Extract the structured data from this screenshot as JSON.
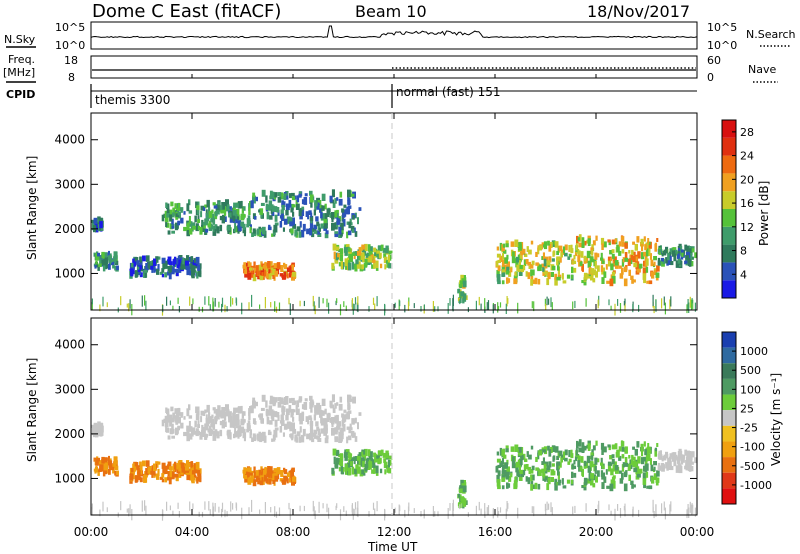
{
  "header": {
    "radar_title": "Dome C East (fitACF)",
    "beam_label": "Beam 10",
    "date_label": "18/Nov/2017"
  },
  "strip": {
    "nsky_label": "N.Sky",
    "nsky_ticks": [
      "10^5",
      "10^0"
    ],
    "nsearch_label": "N.Search",
    "nsearch_ticks": [
      "10^5",
      "10^0"
    ],
    "freq_label_1": "Freq.",
    "freq_label_2": "[MHz]",
    "freq_ticks": [
      "18",
      "8"
    ],
    "nave_label": "Nave",
    "nave_ticks": [
      "60",
      "0"
    ],
    "cpid_label": "CPID",
    "cpid_segments": [
      {
        "name": "themis 3300",
        "start": 0
      },
      {
        "name": "normal (fast) 151",
        "start": 12
      }
    ]
  },
  "axes": {
    "xlabel": "Time UT",
    "x_ticks": [
      "00:00",
      "04:00",
      "08:00",
      "12:00",
      "16:00",
      "20:00",
      "00:00"
    ],
    "ylabel": "Slant Range [km]",
    "y_ticks": [
      "1000",
      "2000",
      "3000",
      "4000"
    ]
  },
  "colorbars": {
    "power_label": "Power [dB]",
    "power_ticks": [
      "4",
      "8",
      "12",
      "16",
      "20",
      "24",
      "28"
    ],
    "power_colors": [
      "#1a1ae6",
      "#2a52b8",
      "#2f7a5c",
      "#3f9c6b",
      "#55c23a",
      "#c8cc2a",
      "#f0a020",
      "#ee6a10",
      "#e03010",
      "#d81010"
    ],
    "velocity_label": "Velocity [m s⁻¹]",
    "velocity_ticks": [
      "1000",
      "500",
      "100",
      "25",
      "-25",
      "-100",
      "-500",
      "-1000"
    ],
    "velocity_colors": [
      "#1a3fb0",
      "#2f6aa0",
      "#3a7a5a",
      "#4e9a62",
      "#6ccc3a",
      "#c6c6c6",
      "#f0c020",
      "#f0a010",
      "#e87010",
      "#e03818",
      "#e01010"
    ]
  },
  "chart_data": {
    "type": "heatmap",
    "title": "Dome C East (fitACF)",
    "xlabel": "Time UT",
    "ylabel": "Slant Range [km]",
    "xlim": [
      0,
      24
    ],
    "ylim": [
      180,
      4600
    ],
    "clim_power": [
      0,
      30
    ],
    "clim_velocity": [
      -1000,
      1000
    ],
    "regions": [
      {
        "t0": 0.1,
        "t1": 1.0,
        "r0": 1100,
        "r1": 1450,
        "power": 8,
        "velocity": -100
      },
      {
        "t0": 0.0,
        "t1": 0.4,
        "r0": 2000,
        "r1": 2200,
        "power": 6,
        "velocity": 25
      },
      {
        "t0": 1.5,
        "t1": 4.3,
        "r0": 950,
        "r1": 1350,
        "power": 6,
        "velocity": -100
      },
      {
        "t0": 2.8,
        "t1": 6.3,
        "r0": 1900,
        "r1": 2600,
        "power": 10,
        "velocity": 25
      },
      {
        "t0": 6.3,
        "t1": 10.6,
        "r0": 1850,
        "r1": 2800,
        "power": 8,
        "velocity": 25
      },
      {
        "t0": 6.0,
        "t1": 8.0,
        "r0": 900,
        "r1": 1200,
        "power": 22,
        "velocity": -100
      },
      {
        "t0": 9.5,
        "t1": 11.8,
        "r0": 1100,
        "r1": 1600,
        "power": 14,
        "velocity": 100
      },
      {
        "t0": 14.5,
        "t1": 14.8,
        "r0": 400,
        "r1": 900,
        "power": 14,
        "velocity": 100
      },
      {
        "t0": 16.0,
        "t1": 19.2,
        "r0": 800,
        "r1": 1700,
        "power": 16,
        "velocity": 100
      },
      {
        "t0": 19.2,
        "t1": 22.4,
        "r0": 800,
        "r1": 1800,
        "power": 18,
        "velocity": 100
      },
      {
        "t0": 22.4,
        "t1": 23.9,
        "r0": 1200,
        "r1": 1600,
        "power": 8,
        "velocity": 25
      },
      {
        "t0": 0.0,
        "t1": 24.0,
        "r0": 180,
        "r1": 400,
        "power": 12,
        "velocity": 25
      }
    ]
  }
}
